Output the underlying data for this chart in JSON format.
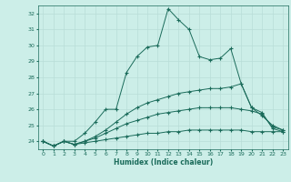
{
  "title": "",
  "xlabel": "Humidex (Indice chaleur)",
  "bg_color": "#cceee8",
  "line_color": "#1a6b5a",
  "grid_color": "#b8ddd8",
  "xlim": [
    -0.5,
    23.5
  ],
  "ylim": [
    23.5,
    32.5
  ],
  "yticks": [
    24,
    25,
    26,
    27,
    28,
    29,
    30,
    31,
    32
  ],
  "xticks": [
    0,
    1,
    2,
    3,
    4,
    5,
    6,
    7,
    8,
    9,
    10,
    11,
    12,
    13,
    14,
    15,
    16,
    17,
    18,
    19,
    20,
    21,
    22,
    23
  ],
  "lines": [
    {
      "x": [
        0,
        1,
        2,
        3,
        4,
        5,
        6,
        7,
        8,
        9,
        10,
        11,
        12,
        13,
        14,
        15,
        16,
        17,
        18,
        19,
        20,
        21,
        22,
        23
      ],
      "y": [
        24.0,
        23.7,
        24.0,
        24.0,
        24.5,
        25.2,
        26.0,
        26.0,
        28.3,
        29.3,
        29.9,
        30.0,
        32.3,
        31.6,
        31.0,
        29.3,
        29.1,
        29.2,
        29.8,
        27.6,
        26.1,
        25.8,
        24.8,
        24.6
      ]
    },
    {
      "x": [
        0,
        1,
        2,
        3,
        4,
        5,
        6,
        7,
        8,
        9,
        10,
        11,
        12,
        13,
        14,
        15,
        16,
        17,
        18,
        19,
        20,
        21,
        22,
        23
      ],
      "y": [
        24.0,
        23.7,
        24.0,
        23.8,
        24.0,
        24.3,
        24.7,
        25.2,
        25.7,
        26.1,
        26.4,
        26.6,
        26.8,
        27.0,
        27.1,
        27.2,
        27.3,
        27.3,
        27.4,
        27.6,
        26.1,
        25.6,
        25.0,
        24.7
      ]
    },
    {
      "x": [
        0,
        1,
        2,
        3,
        4,
        5,
        6,
        7,
        8,
        9,
        10,
        11,
        12,
        13,
        14,
        15,
        16,
        17,
        18,
        19,
        20,
        21,
        22,
        23
      ],
      "y": [
        24.0,
        23.7,
        24.0,
        23.8,
        24.0,
        24.2,
        24.5,
        24.8,
        25.1,
        25.3,
        25.5,
        25.7,
        25.8,
        25.9,
        26.0,
        26.1,
        26.1,
        26.1,
        26.1,
        26.0,
        25.9,
        25.7,
        24.9,
        24.7
      ]
    },
    {
      "x": [
        0,
        1,
        2,
        3,
        4,
        5,
        6,
        7,
        8,
        9,
        10,
        11,
        12,
        13,
        14,
        15,
        16,
        17,
        18,
        19,
        20,
        21,
        22,
        23
      ],
      "y": [
        24.0,
        23.7,
        24.0,
        23.8,
        23.9,
        24.0,
        24.1,
        24.2,
        24.3,
        24.4,
        24.5,
        24.5,
        24.6,
        24.6,
        24.7,
        24.7,
        24.7,
        24.7,
        24.7,
        24.7,
        24.6,
        24.6,
        24.6,
        24.6
      ]
    }
  ]
}
